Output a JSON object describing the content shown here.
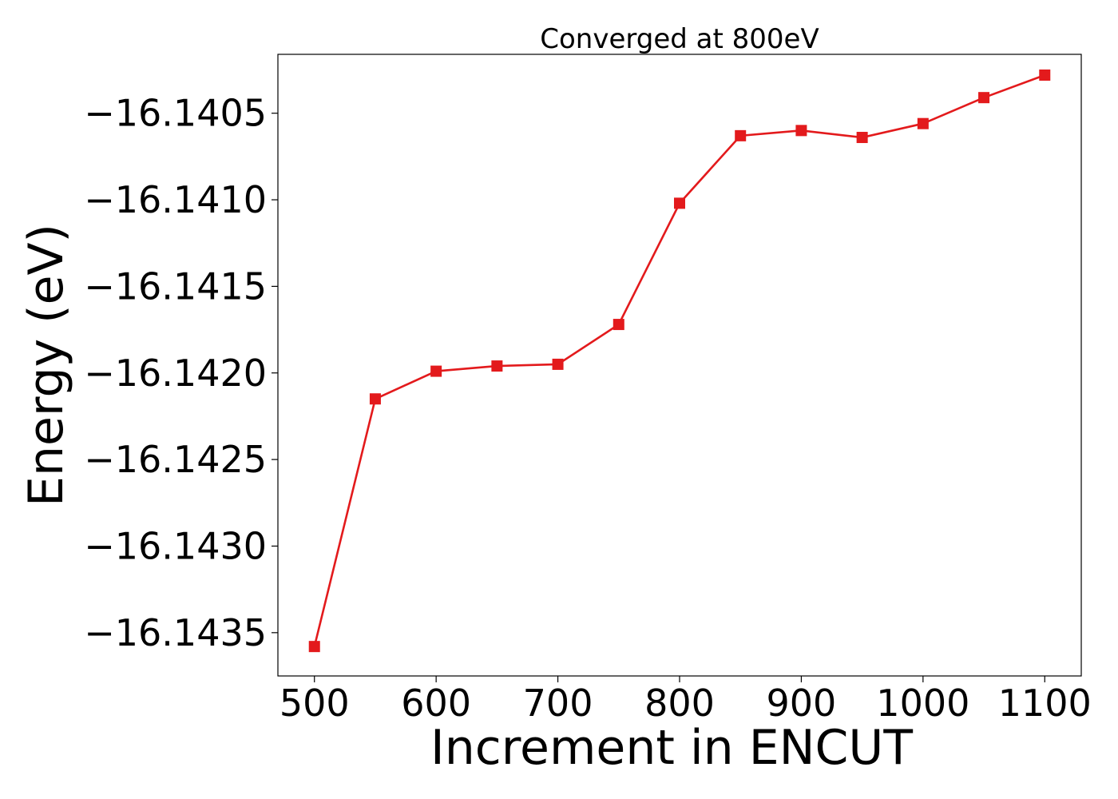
{
  "chart_data": {
    "type": "line",
    "title": "Converged at 800eV",
    "xlabel": "Increment in ENCUT",
    "ylabel": "Energy (eV)",
    "xlim": [
      470,
      1130
    ],
    "ylim": [
      -16.14375,
      -16.14016
    ],
    "x_ticks": [
      500,
      600,
      700,
      800,
      900,
      1000,
      1100
    ],
    "x_tick_labels": [
      "500",
      "600",
      "700",
      "800",
      "900",
      "1000",
      "1100"
    ],
    "y_ticks": [
      -16.1435,
      -16.143,
      -16.1425,
      -16.142,
      -16.1415,
      -16.141,
      -16.1405
    ],
    "y_tick_labels": [
      "−16.1435",
      "−16.1430",
      "−16.1425",
      "−16.1420",
      "−16.1415",
      "−16.1410",
      "−16.1405"
    ],
    "grid": false,
    "legend": false,
    "series": [
      {
        "color": "#e31a1c",
        "marker": "square",
        "x": [
          500,
          550,
          600,
          650,
          700,
          750,
          800,
          850,
          900,
          950,
          1000,
          1050,
          1100
        ],
        "y": [
          -16.14358,
          -16.14215,
          -16.14199,
          -16.14196,
          -16.14195,
          -16.14172,
          -16.14102,
          -16.14063,
          -16.1406,
          -16.14064,
          -16.14056,
          -16.14041,
          -16.14028
        ]
      }
    ]
  }
}
